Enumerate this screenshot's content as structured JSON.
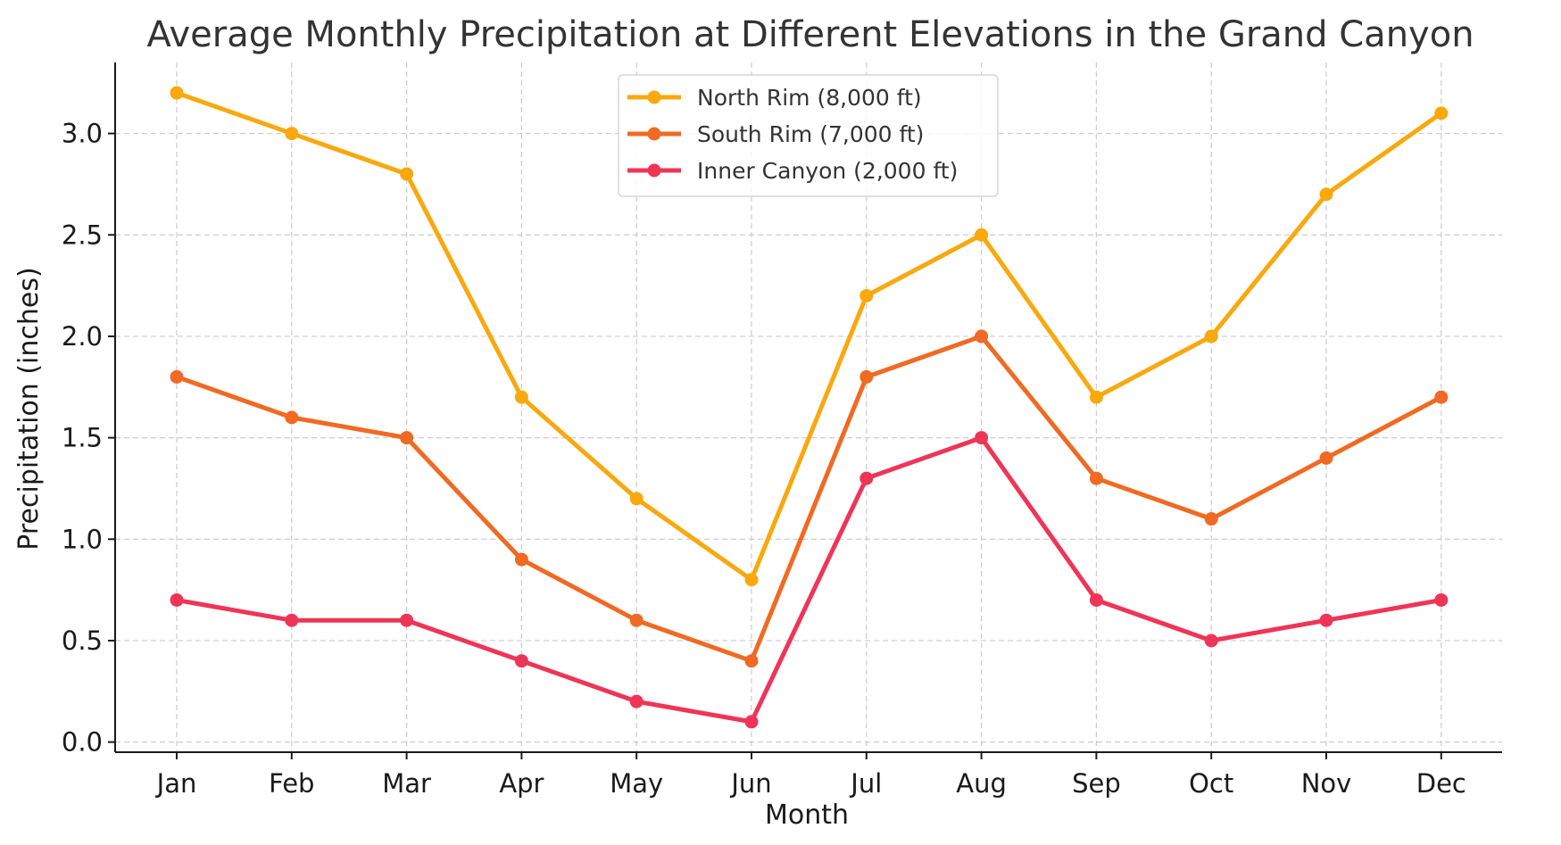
{
  "chart_data": {
    "type": "line",
    "title": "Average Monthly Precipitation at Different Elevations in the Grand Canyon",
    "xlabel": "Month",
    "ylabel": "Precipitation (inches)",
    "categories": [
      "Jan",
      "Feb",
      "Mar",
      "Apr",
      "May",
      "Jun",
      "Jul",
      "Aug",
      "Sep",
      "Oct",
      "Nov",
      "Dec"
    ],
    "yticks": [
      "0.0",
      "0.5",
      "1.0",
      "1.5",
      "2.0",
      "2.5",
      "3.0"
    ],
    "ylim": [
      -0.05,
      3.35
    ],
    "grid": true,
    "legend_position": "top-center",
    "series": [
      {
        "name": "North Rim (8,000 ft)",
        "color": "#f9a80e",
        "values": [
          3.2,
          3.0,
          2.8,
          1.7,
          1.2,
          0.8,
          2.2,
          2.5,
          1.7,
          2.0,
          2.7,
          3.1
        ]
      },
      {
        "name": "South Rim (7,000 ft)",
        "color": "#f06a23",
        "values": [
          1.8,
          1.6,
          1.5,
          0.9,
          0.6,
          0.4,
          1.8,
          2.0,
          1.3,
          1.1,
          1.4,
          1.7
        ]
      },
      {
        "name": "Inner Canyon (2,000 ft)",
        "color": "#ef3557",
        "values": [
          0.7,
          0.6,
          0.6,
          0.4,
          0.2,
          0.1,
          1.3,
          1.5,
          0.7,
          0.5,
          0.6,
          0.7
        ]
      }
    ]
  }
}
